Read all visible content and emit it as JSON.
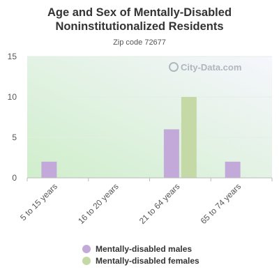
{
  "title": "Age and Sex of Mentally-Disabled Noninstitutionalized Residents",
  "subtitle": "Zip code 72677",
  "watermark": "City-Data.com",
  "chart_data": {
    "type": "bar",
    "categories": [
      "5 to 15 years",
      "16 to 20 years",
      "21 to 64 years",
      "65 to 74 years"
    ],
    "series": [
      {
        "name": "Mentally-disabled males",
        "values": [
          2,
          0,
          6,
          2
        ],
        "color": "#c3a9da"
      },
      {
        "name": "Mentally-disabled females",
        "values": [
          0,
          0,
          10,
          0
        ],
        "color": "#c5d9a6"
      }
    ],
    "ylim": [
      0,
      15
    ],
    "yticks": [
      0,
      5,
      10,
      15
    ],
    "grid": true,
    "legend_position": "bottom"
  }
}
